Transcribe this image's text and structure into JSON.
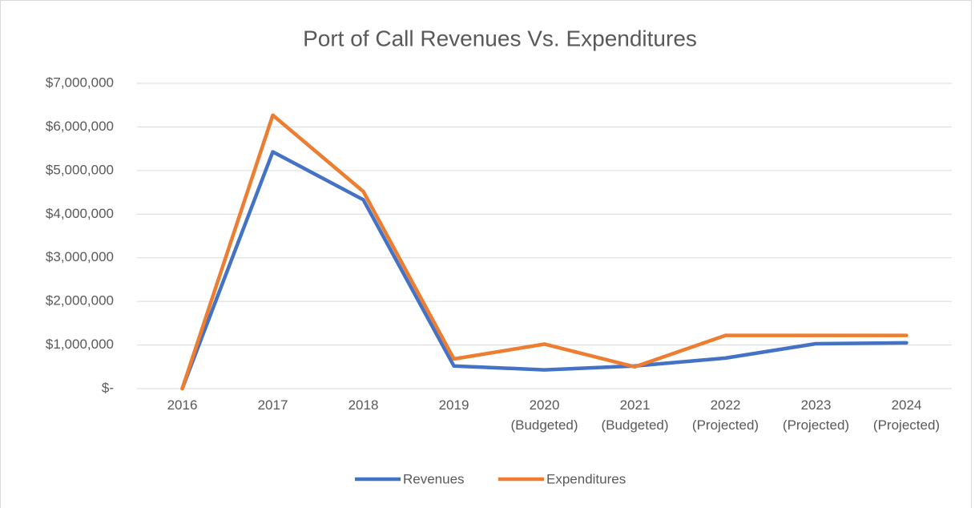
{
  "chart_data": {
    "type": "line",
    "title": "Port of Call Revenues Vs. Expenditures",
    "categories": [
      "2016",
      "2017",
      "2018",
      "2019",
      "2020 (Budgeted)",
      "2021 (Budgeted)",
      "2022 (Projected)",
      "2023 (Projected)",
      "2024 (Projected)"
    ],
    "series": [
      {
        "name": "Revenues",
        "color": "#4472c4",
        "values": [
          0,
          5430000,
          4330000,
          520000,
          430000,
          520000,
          700000,
          1030000,
          1050000
        ]
      },
      {
        "name": "Expenditures",
        "color": "#ed7d31",
        "values": [
          0,
          6270000,
          4520000,
          680000,
          1020000,
          500000,
          1220000,
          1220000,
          1220000
        ]
      }
    ],
    "ylim": [
      0,
      7000000
    ],
    "yticks": [
      {
        "value": 0,
        "label": "$-"
      },
      {
        "value": 1000000,
        "label": "$1,000,000"
      },
      {
        "value": 2000000,
        "label": "$2,000,000"
      },
      {
        "value": 3000000,
        "label": "$3,000,000"
      },
      {
        "value": 4000000,
        "label": "$4,000,000"
      },
      {
        "value": 5000000,
        "label": "$5,000,000"
      },
      {
        "value": 6000000,
        "label": "$6,000,000"
      },
      {
        "value": 7000000,
        "label": "$7,000,000"
      }
    ],
    "grid": true,
    "legend": "bottom"
  }
}
